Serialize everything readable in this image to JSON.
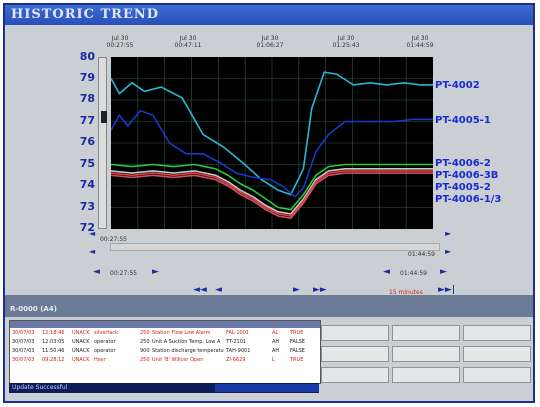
{
  "window": {
    "title": "HISTORIC TREND"
  },
  "time_header": [
    {
      "date": "Jul 30",
      "time": "00:27:55"
    },
    {
      "date": "Jul 30",
      "time": "00:47:11"
    },
    {
      "date": "Jul 30",
      "time": "01:06:27"
    },
    {
      "date": "Jul 30",
      "time": "01:25:43"
    },
    {
      "date": "Jul 30",
      "time": "01:44:59"
    }
  ],
  "chart_data": {
    "type": "line",
    "ylim": [
      72,
      80
    ],
    "yticks": [
      "80",
      "79",
      "78",
      "77",
      "76",
      "75",
      "74",
      "73",
      "72"
    ],
    "xlim_minutes": [
      0,
      77
    ],
    "series": [
      {
        "name": "PT-4002",
        "color": "#29b6d8",
        "x": [
          0,
          2,
          5,
          8,
          12,
          17,
          22,
          27,
          32,
          36,
          40,
          43,
          46,
          48,
          51,
          54,
          58,
          62,
          66,
          70,
          74,
          77
        ],
        "values": [
          79.0,
          78.3,
          78.8,
          78.4,
          78.6,
          78.1,
          76.4,
          75.8,
          75.0,
          74.3,
          73.8,
          73.6,
          74.8,
          77.6,
          79.3,
          79.2,
          78.7,
          78.8,
          78.7,
          78.8,
          78.7,
          78.7
        ]
      },
      {
        "name": "PT-4005-1",
        "color": "#1838c8",
        "x": [
          0,
          2,
          4,
          7,
          10,
          14,
          18,
          22,
          26,
          30,
          34,
          38,
          41,
          44,
          46,
          49,
          52,
          56,
          60,
          64,
          68,
          72,
          77
        ],
        "values": [
          76.6,
          77.3,
          76.8,
          77.5,
          77.3,
          76.0,
          75.5,
          75.5,
          75.1,
          74.6,
          74.4,
          74.3,
          74.0,
          73.5,
          73.9,
          75.6,
          76.4,
          77.0,
          77.0,
          77.0,
          77.0,
          77.1,
          77.1
        ]
      },
      {
        "name": "PT-4006-2",
        "color": "#28c840",
        "x": [
          0,
          5,
          10,
          15,
          20,
          25,
          28,
          31,
          34,
          37,
          40,
          43,
          46,
          49,
          52,
          56,
          60,
          66,
          72,
          77
        ],
        "values": [
          75.0,
          74.9,
          75.0,
          74.9,
          75.0,
          74.8,
          74.5,
          74.1,
          73.8,
          73.4,
          73.0,
          72.9,
          73.6,
          74.5,
          74.9,
          75.0,
          75.0,
          75.0,
          75.0,
          75.0
        ]
      },
      {
        "name": "PT-4006-3B",
        "color": "#c8c8c8",
        "x": [
          0,
          5,
          10,
          15,
          20,
          25,
          28,
          31,
          34,
          37,
          40,
          43,
          46,
          49,
          52,
          56,
          60,
          66,
          72,
          77
        ],
        "values": [
          74.7,
          74.6,
          74.7,
          74.6,
          74.7,
          74.5,
          74.2,
          73.8,
          73.5,
          73.1,
          72.8,
          72.7,
          73.4,
          74.3,
          74.7,
          74.8,
          74.8,
          74.8,
          74.8,
          74.8
        ]
      },
      {
        "name": "PT-4005-2",
        "color": "#e04040",
        "x": [
          0,
          5,
          10,
          15,
          20,
          25,
          28,
          31,
          34,
          37,
          40,
          43,
          46,
          49,
          52,
          56,
          60,
          66,
          72,
          77
        ],
        "values": [
          74.6,
          74.5,
          74.6,
          74.5,
          74.6,
          74.4,
          74.1,
          73.7,
          73.4,
          73.0,
          72.7,
          72.6,
          73.3,
          74.2,
          74.6,
          74.7,
          74.7,
          74.7,
          74.7,
          74.7
        ]
      },
      {
        "name": "PT-4006-1/3",
        "color": "#d05060",
        "x": [
          0,
          5,
          10,
          15,
          20,
          25,
          28,
          31,
          34,
          37,
          40,
          43,
          46,
          49,
          52,
          56,
          60,
          66,
          72,
          77
        ],
        "values": [
          74.5,
          74.4,
          74.5,
          74.4,
          74.5,
          74.3,
          74.0,
          73.6,
          73.3,
          72.9,
          72.6,
          72.5,
          73.2,
          74.1,
          74.5,
          74.6,
          74.6,
          74.6,
          74.6,
          74.6
        ]
      }
    ],
    "grid": true
  },
  "time_range": {
    "start": "00:27:55",
    "end": "01:44:59"
  },
  "scroll_start": "00:27:55",
  "scroll_end": "01:44:59",
  "interval": "15 minutes",
  "panel": {
    "label": "R-0000 (A4)"
  },
  "alarms": [
    {
      "date": "30/07/03",
      "time": "12:18:46",
      "node": "UNACK",
      "user": "silverfack",
      "pri": "250",
      "desc": "Station Flow Low Alarm",
      "tag": "FAL-1001",
      "type": "AL",
      "state": "TRUE",
      "color": "#d02020"
    },
    {
      "date": "30/07/03",
      "time": "12:03:05",
      "node": "UNACK",
      "user": "operator",
      "pri": "250",
      "desc": "Unit A Suction Temp. Low A",
      "tag": "TT-2101",
      "type": "AH",
      "state": "FALSE",
      "color": "#222222"
    },
    {
      "date": "30/07/03",
      "time": "11:50:46",
      "node": "UNACK",
      "user": "operator",
      "pri": "900",
      "desc": "Station discharge temperatu",
      "tag": "TAH-9001",
      "type": "AH",
      "state": "FALSE",
      "color": "#222222"
    },
    {
      "date": "30/07/03",
      "time": "09:28:12",
      "node": "UNACK",
      "user": "Hser",
      "pri": "250",
      "desc": "Unit 'B' Willcer Open",
      "tag": "ZI-6629",
      "type": "L",
      "state": "TRUE",
      "color": "#d02020"
    }
  ],
  "status": {
    "message": "Update Successful"
  }
}
